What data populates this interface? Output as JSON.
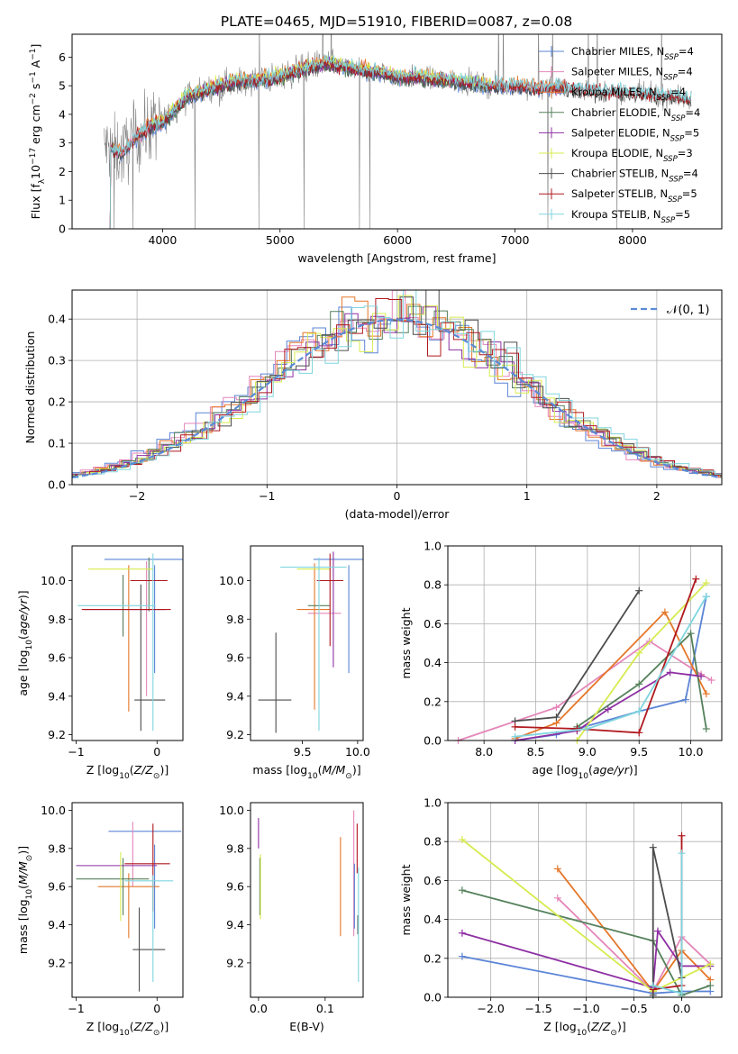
{
  "figure_title": "PLATE=0465, MJD=51910, FIBERID=0087, z=0.08",
  "colors": {
    "chab_miles": "#5b84d6",
    "salp_miles": "#e486b9",
    "krou_miles": "#e5772a",
    "chab_elodie": "#55815c",
    "salp_elodie": "#8e2fa3",
    "krou_elodie": "#d7eb4f",
    "chab_stelib": "#4d4d4d",
    "salp_stelib": "#b0181e",
    "krou_stelib": "#7fd5de",
    "data_grey": "#808080",
    "gauss": "#5b8bd6",
    "grid": "#b0b0b0"
  },
  "chart_data": [
    {
      "id": "spectrum",
      "type": "line",
      "title": "PLATE=0465, MJD=51910, FIBERID=0087, z=0.08",
      "xlabel": "wavelength [Angstrom, rest frame]",
      "ylabel": "Flux [f_λ 10^-17 erg cm^-2 s^-1 A^-1]",
      "xlim": [
        3230,
        8760
      ],
      "ylim": [
        0,
        6.8
      ],
      "xticks": [
        4000,
        5000,
        6000,
        7000,
        8000
      ],
      "yticks": [
        0,
        1,
        2,
        3,
        4,
        5,
        6
      ],
      "grid": false,
      "legend": "upper right",
      "continuum": [
        [
          3500,
          2.9
        ],
        [
          3650,
          2.6
        ],
        [
          3750,
          3.1
        ],
        [
          3900,
          3.6
        ],
        [
          4000,
          3.7
        ],
        [
          4200,
          4.6
        ],
        [
          4400,
          4.9
        ],
        [
          4600,
          5.1
        ],
        [
          4800,
          5.2
        ],
        [
          5000,
          5.3
        ],
        [
          5200,
          5.6
        ],
        [
          5400,
          5.8
        ],
        [
          5600,
          5.6
        ],
        [
          5800,
          5.5
        ],
        [
          6000,
          5.3
        ],
        [
          6200,
          5.3
        ],
        [
          6400,
          5.2
        ],
        [
          6600,
          5.1
        ],
        [
          6800,
          5.0
        ],
        [
          7000,
          5.0
        ],
        [
          7200,
          4.9
        ],
        [
          7400,
          4.95
        ],
        [
          7600,
          4.85
        ],
        [
          7800,
          4.8
        ],
        [
          8000,
          4.75
        ],
        [
          8200,
          4.65
        ],
        [
          8400,
          4.6
        ],
        [
          8500,
          4.5
        ]
      ],
      "series": [
        {
          "key": "chab_miles",
          "name": "Chabrier MILES, N",
          "sub": "SSP",
          "suffix": "=4",
          "range": [
            3500,
            7420
          ]
        },
        {
          "key": "salp_miles",
          "name": "Salpeter MILES, N",
          "sub": "SSP",
          "suffix": "=4",
          "range": [
            3500,
            7420
          ]
        },
        {
          "key": "krou_miles",
          "name": "Kroupa MILES, N",
          "sub": "SSP",
          "suffix": "=4",
          "range": [
            3500,
            7420
          ]
        },
        {
          "key": "chab_elodie",
          "name": "Chabrier ELODIE, N",
          "sub": "SSP",
          "suffix": "=4",
          "range": [
            3900,
            6800
          ]
        },
        {
          "key": "salp_elodie",
          "name": "Salpeter ELODIE, N",
          "sub": "SSP",
          "suffix": "=5",
          "range": [
            3900,
            6800
          ]
        },
        {
          "key": "krou_elodie",
          "name": "Kroupa ELODIE, N",
          "sub": "SSP",
          "suffix": "=3",
          "range": [
            3900,
            6800
          ]
        },
        {
          "key": "chab_stelib",
          "name": "Chabrier STELIB, N",
          "sub": "SSP",
          "suffix": "=4",
          "range": [
            3500,
            8500
          ]
        },
        {
          "key": "salp_stelib",
          "name": "Salpeter STELIB, N",
          "sub": "SSP",
          "suffix": "=5",
          "range": [
            3500,
            8500
          ]
        },
        {
          "key": "krou_stelib",
          "name": "Kroupa STELIB, N",
          "sub": "SSP",
          "suffix": "=5",
          "range": [
            3500,
            8500
          ]
        }
      ]
    },
    {
      "id": "residuals",
      "type": "histogram",
      "xlabel": "(data-model)/error",
      "ylabel": "Normed distribution",
      "xlim": [
        -2.5,
        2.5
      ],
      "ylim": [
        0,
        0.47
      ],
      "xticks": [
        -2,
        -1,
        0,
        1,
        2
      ],
      "yticks": [
        0.0,
        0.1,
        0.2,
        0.3,
        0.4
      ],
      "grid": true,
      "legend": "upper right",
      "legend_label": "𝒩(0, 1)",
      "bin_width": 0.1
    },
    {
      "id": "age_vs_z",
      "type": "errorbar",
      "xlabel": "Z [log10(Z/Z⊙)]",
      "ylabel": "age [log10(age/yr)]",
      "xlim": [
        -1.05,
        0.32
      ],
      "ylim": [
        9.17,
        10.18
      ],
      "xticks": [
        -1,
        0
      ],
      "yticks": [
        9.2,
        9.4,
        9.6,
        9.8,
        10.0
      ],
      "points": [
        {
          "key": "chab_miles",
          "x": -0.05,
          "xerr": 0.6,
          "y": 10.11,
          "yerr": 0.0
        },
        {
          "key": "chab_miles",
          "x": -0.03,
          "xerr": 0.0,
          "y": 9.8,
          "yerr": 0.28
        },
        {
          "key": "salp_miles",
          "x": -0.13,
          "xerr": 0.0,
          "y": 9.75,
          "yerr": 0.35
        },
        {
          "key": "krou_miles",
          "x": -0.35,
          "xerr": 0.0,
          "y": 9.7,
          "yerr": 0.38
        },
        {
          "key": "chab_elodie",
          "x": -0.1,
          "xerr": 0.0,
          "y": 9.98,
          "yerr": 0.14
        },
        {
          "key": "chab_elodie",
          "x": -0.42,
          "xerr": 0.0,
          "y": 9.87,
          "yerr": 0.16
        },
        {
          "key": "salp_elodie",
          "x": -0.4,
          "xerr": 0.5,
          "y": 9.85,
          "yerr": 0.0
        },
        {
          "key": "krou_elodie",
          "x": -0.45,
          "xerr": 0.4,
          "y": 10.06,
          "yerr": 0.0
        },
        {
          "key": "chab_stelib",
          "x": -0.2,
          "xerr": 0.0,
          "y": 9.6,
          "yerr": 0.38
        },
        {
          "key": "chab_stelib",
          "x": -0.09,
          "xerr": 0.19,
          "y": 9.38,
          "yerr": 0.0
        },
        {
          "key": "salp_stelib",
          "x": -0.1,
          "xerr": 0.23,
          "y": 10.0,
          "yerr": 0.0
        },
        {
          "key": "salp_stelib",
          "x": -0.38,
          "xerr": 0.55,
          "y": 9.85,
          "yerr": 0.0
        },
        {
          "key": "krou_stelib",
          "x": -0.05,
          "xerr": 0.0,
          "y": 9.68,
          "yerr": 0.46
        },
        {
          "key": "krou_stelib",
          "x": -0.5,
          "xerr": 0.48,
          "y": 9.87,
          "yerr": 0.0
        }
      ]
    },
    {
      "id": "age_vs_mass",
      "type": "errorbar",
      "xlabel": "mass [log10(M/M⊙)]",
      "ylabel": "",
      "xlim": [
        9.03,
        10.05
      ],
      "ylim": [
        9.17,
        10.18
      ],
      "xticks": [
        9.5,
        10.0
      ],
      "yticks": [
        9.2,
        9.4,
        9.6,
        9.8,
        10.0
      ],
      "points": [
        {
          "key": "chab_miles",
          "x": 9.85,
          "xerr": 0.25,
          "y": 10.11,
          "yerr": 0.0
        },
        {
          "key": "chab_miles",
          "x": 9.92,
          "xerr": 0.0,
          "y": 9.8,
          "yerr": 0.28
        },
        {
          "key": "salp_miles",
          "x": 9.7,
          "xerr": 0.15,
          "y": 9.83,
          "yerr": 0.0
        },
        {
          "key": "krou_miles",
          "x": 9.6,
          "xerr": 0.15,
          "y": 9.85,
          "yerr": 0.0
        },
        {
          "key": "krou_miles",
          "x": 9.61,
          "xerr": 0.0,
          "y": 9.71,
          "yerr": 0.38
        },
        {
          "key": "chab_elodie",
          "x": 9.65,
          "xerr": 0.1,
          "y": 9.87,
          "yerr": 0.0
        },
        {
          "key": "salp_elodie",
          "x": 9.78,
          "xerr": 0.0,
          "y": 9.85,
          "yerr": 0.3
        },
        {
          "key": "krou_elodie",
          "x": 9.6,
          "xerr": 0.15,
          "y": 10.06,
          "yerr": 0.0
        },
        {
          "key": "chab_stelib",
          "x": 9.25,
          "xerr": 0.15,
          "y": 9.38,
          "yerr": 0.0
        },
        {
          "key": "chab_stelib",
          "x": 9.26,
          "xerr": 0.0,
          "y": 9.47,
          "yerr": 0.26
        },
        {
          "key": "salp_stelib",
          "x": 9.75,
          "xerr": 0.12,
          "y": 10.0,
          "yerr": 0.0
        },
        {
          "key": "salp_stelib",
          "x": 9.75,
          "xerr": 0.0,
          "y": 9.9,
          "yerr": 0.24
        },
        {
          "key": "krou_stelib",
          "x": 9.65,
          "xerr": 0.0,
          "y": 9.67,
          "yerr": 0.45
        },
        {
          "key": "krou_stelib",
          "x": 9.6,
          "xerr": 0.3,
          "y": 10.07,
          "yerr": 0.0
        }
      ]
    },
    {
      "id": "weight_vs_age",
      "type": "line",
      "xlabel": "age [log10(age/yr)]",
      "ylabel": "mass weight",
      "xlim": [
        7.65,
        10.3
      ],
      "ylim": [
        0,
        1.0
      ],
      "xticks": [
        8.0,
        8.5,
        9.0,
        9.5,
        10.0
      ],
      "yticks": [
        0.0,
        0.2,
        0.4,
        0.6,
        0.8,
        1.0
      ],
      "grid": true,
      "series": [
        {
          "key": "chab_miles",
          "x": [
            8.3,
            8.7,
            9.5,
            9.95,
            10.15
          ],
          "y": [
            0.0,
            0.03,
            0.15,
            0.21,
            0.74
          ]
        },
        {
          "key": "salp_miles",
          "x": [
            7.75,
            8.7,
            9.6,
            10.1,
            10.2
          ],
          "y": [
            0.0,
            0.17,
            0.51,
            0.34,
            0.31
          ]
        },
        {
          "key": "krou_miles",
          "x": [
            8.3,
            8.7,
            9.75,
            10.15
          ],
          "y": [
            0.01,
            0.09,
            0.66,
            0.24
          ]
        },
        {
          "key": "chab_elodie",
          "x": [
            8.9,
            9.5,
            10.0,
            10.15
          ],
          "y": [
            0.07,
            0.29,
            0.55,
            0.06
          ]
        },
        {
          "key": "salp_elodie",
          "x": [
            8.3,
            8.9,
            9.2,
            9.8,
            10.1
          ],
          "y": [
            0.0,
            0.05,
            0.16,
            0.35,
            0.33
          ]
        },
        {
          "key": "krou_elodie",
          "x": [
            8.9,
            9.5,
            10.15
          ],
          "y": [
            0.0,
            0.45,
            0.81
          ]
        },
        {
          "key": "chab_stelib",
          "x": [
            8.3,
            8.7,
            9.5
          ],
          "y": [
            0.1,
            0.12,
            0.77
          ]
        },
        {
          "key": "salp_stelib",
          "x": [
            8.3,
            8.9,
            9.5,
            10.05
          ],
          "y": [
            0.07,
            0.06,
            0.04,
            0.83
          ]
        },
        {
          "key": "krou_stelib",
          "x": [
            8.3,
            9.0,
            9.5,
            10.15
          ],
          "y": [
            0.02,
            0.06,
            0.15,
            0.74
          ]
        }
      ]
    },
    {
      "id": "mass_vs_z",
      "type": "errorbar",
      "xlabel": "Z [log10(Z/Z⊙)]",
      "ylabel": "mass [log10(M/M⊙)]",
      "xlim": [
        -1.05,
        0.32
      ],
      "ylim": [
        9.02,
        10.04
      ],
      "xticks": [
        -1,
        0
      ],
      "yticks": [
        9.2,
        9.4,
        9.6,
        9.8,
        10.0
      ],
      "points": [
        {
          "key": "chab_miles",
          "x": -0.15,
          "xerr": 0.45,
          "y": 9.89,
          "yerr": 0.0
        },
        {
          "key": "chab_miles",
          "x": -0.03,
          "xerr": 0.0,
          "y": 9.6,
          "yerr": 0.22
        },
        {
          "key": "salp_miles",
          "x": -0.3,
          "xerr": 0.0,
          "y": 9.77,
          "yerr": 0.17
        },
        {
          "key": "krou_miles",
          "x": -0.35,
          "xerr": 0.38,
          "y": 9.6,
          "yerr": 0.0
        },
        {
          "key": "krou_miles",
          "x": -0.35,
          "xerr": 0.0,
          "y": 9.5,
          "yerr": 0.17
        },
        {
          "key": "chab_elodie",
          "x": -0.55,
          "xerr": 0.45,
          "y": 9.64,
          "yerr": 0.0
        },
        {
          "key": "chab_elodie",
          "x": -0.42,
          "xerr": 0.0,
          "y": 9.6,
          "yerr": 0.15
        },
        {
          "key": "salp_elodie",
          "x": -0.5,
          "xerr": 0.5,
          "y": 9.71,
          "yerr": 0.0
        },
        {
          "key": "krou_elodie",
          "x": -0.45,
          "xerr": 0.0,
          "y": 9.6,
          "yerr": 0.18
        },
        {
          "key": "chab_stelib",
          "x": -0.1,
          "xerr": 0.2,
          "y": 9.27,
          "yerr": 0.0
        },
        {
          "key": "chab_stelib",
          "x": -0.22,
          "xerr": 0.0,
          "y": 9.27,
          "yerr": 0.22
        },
        {
          "key": "salp_stelib",
          "x": -0.05,
          "xerr": 0.0,
          "y": 9.7,
          "yerr": 0.23
        },
        {
          "key": "salp_stelib",
          "x": -0.12,
          "xerr": 0.28,
          "y": 9.72,
          "yerr": 0.0
        },
        {
          "key": "krou_stelib",
          "x": -0.05,
          "xerr": 0.0,
          "y": 9.38,
          "yerr": 0.28
        },
        {
          "key": "krou_stelib",
          "x": -0.1,
          "xerr": 0.3,
          "y": 9.63,
          "yerr": 0.0
        }
      ]
    },
    {
      "id": "mass_vs_ebv",
      "type": "errorbar",
      "xlabel": "E(B-V)",
      "ylabel": "",
      "xlim": [
        -0.012,
        0.157
      ],
      "ylim": [
        9.02,
        10.04
      ],
      "xticks": [
        0.0,
        0.1
      ],
      "yticks": [
        9.2,
        9.4,
        9.6,
        9.8,
        10.0
      ],
      "points": [
        {
          "key": "salp_elodie",
          "x": 0.0,
          "xerr": 0.0,
          "y": 9.88,
          "yerr": 0.08
        },
        {
          "key": "chab_elodie",
          "x": 0.002,
          "xerr": 0.0,
          "y": 9.6,
          "yerr": 0.15
        },
        {
          "key": "krou_elodie",
          "x": 0.003,
          "xerr": 0.0,
          "y": 9.6,
          "yerr": 0.17
        },
        {
          "key": "krou_miles",
          "x": 0.123,
          "xerr": 0.0,
          "y": 9.6,
          "yerr": 0.26
        },
        {
          "key": "salp_miles",
          "x": 0.143,
          "xerr": 0.0,
          "y": 9.67,
          "yerr": 0.33
        },
        {
          "key": "chab_miles",
          "x": 0.144,
          "xerr": 0.0,
          "y": 9.55,
          "yerr": 0.17
        },
        {
          "key": "salp_stelib",
          "x": 0.148,
          "xerr": 0.0,
          "y": 9.8,
          "yerr": 0.13
        },
        {
          "key": "chab_stelib",
          "x": 0.149,
          "xerr": 0.0,
          "y": 9.4,
          "yerr": 0.05
        },
        {
          "key": "krou_stelib",
          "x": 0.15,
          "xerr": 0.0,
          "y": 9.4,
          "yerr": 0.3
        }
      ]
    },
    {
      "id": "weight_vs_z",
      "type": "line",
      "xlabel": "Z [log10(Z/Z⊙)]",
      "ylabel": "mass weight",
      "xlim": [
        -2.45,
        0.42
      ],
      "ylim": [
        0,
        1.0
      ],
      "xticks": [
        -2.0,
        -1.5,
        -1.0,
        -0.5,
        0.0
      ],
      "yticks": [
        0.0,
        0.2,
        0.4,
        0.6,
        0.8,
        1.0
      ],
      "grid": true,
      "series": [
        {
          "key": "chab_miles",
          "x": [
            -2.3,
            -0.3,
            0.0,
            0.3
          ],
          "y": [
            0.21,
            0.02,
            0.03,
            0.03
          ]
        },
        {
          "key": "salp_miles",
          "x": [
            -1.3,
            -0.3,
            0.0,
            0.3
          ],
          "y": [
            0.51,
            0.03,
            0.31,
            0.17
          ]
        },
        {
          "key": "krou_miles",
          "x": [
            -1.3,
            -0.3,
            0.0,
            0.3
          ],
          "y": [
            0.66,
            0.03,
            0.24,
            0.09
          ]
        },
        {
          "key": "chab_elodie",
          "x": [
            -2.3,
            -0.3,
            0.0,
            0.3
          ],
          "y": [
            0.55,
            0.29,
            0.01,
            0.06
          ]
        },
        {
          "key": "salp_elodie",
          "x": [
            -2.3,
            -0.3,
            -0.25,
            0.0,
            0.3
          ],
          "y": [
            0.33,
            0.05,
            0.34,
            0.16,
            0.16
          ]
        },
        {
          "key": "krou_elodie",
          "x": [
            -2.3,
            -0.3,
            0.3
          ],
          "y": [
            0.81,
            0.03,
            0.17
          ]
        },
        {
          "key": "chab_stelib",
          "x": [
            -0.3,
            -0.3,
            0.0
          ],
          "y": [
            0.01,
            0.77,
            0.1
          ]
        },
        {
          "key": "salp_stelib",
          "x": [
            -0.3,
            0.0,
            0.0
          ],
          "y": [
            0.04,
            0.06,
            0.83
          ]
        },
        {
          "key": "krou_stelib",
          "x": [
            -0.3,
            0.0,
            0.0
          ],
          "y": [
            0.06,
            0.02,
            0.74
          ]
        }
      ]
    }
  ]
}
